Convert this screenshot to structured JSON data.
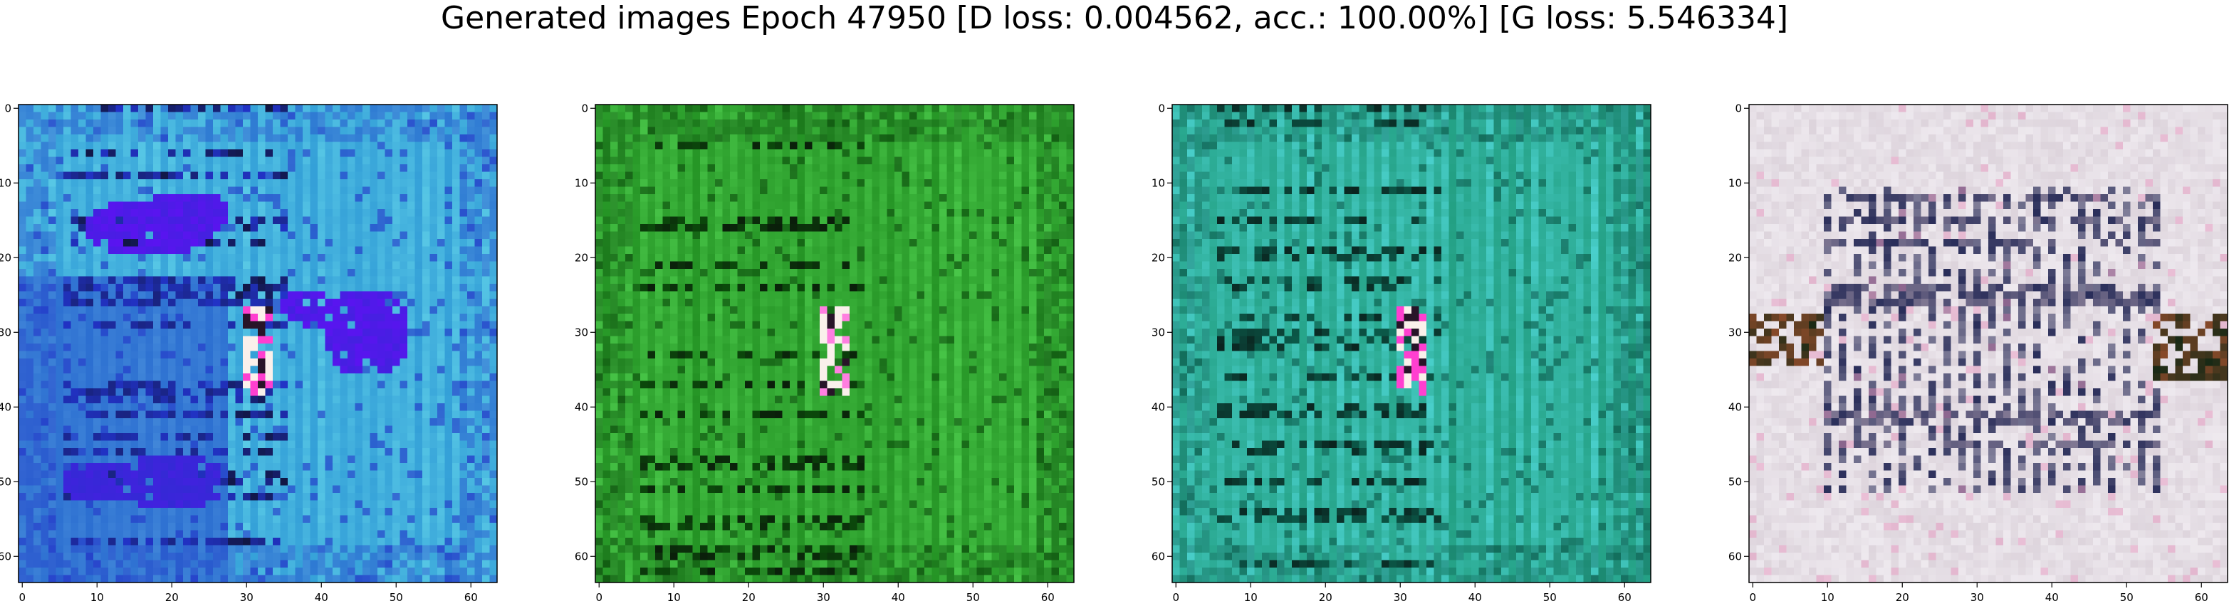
{
  "figure": {
    "title": "Generated images Epoch 47950 [D loss: 0.004562, acc.: 100.00%] [G loss: 5.546334]"
  },
  "panels": [
    {
      "id": "sample-1",
      "palette": {
        "base": "#2f9ad6",
        "light": "#5fd0e8",
        "dark": "#2233c8",
        "accent": "#5a14f0",
        "spot": "#ff3fd0"
      },
      "x_ticks": [
        "0",
        "10",
        "20",
        "30",
        "40",
        "50",
        "60"
      ],
      "y_ticks": [
        "0",
        "10",
        "20",
        "30",
        "40",
        "50",
        "60"
      ]
    },
    {
      "id": "sample-2",
      "palette": {
        "base": "#1e8a1e",
        "light": "#4fcf4f",
        "dark": "#0b4a0b",
        "accent": "#2aa82a",
        "spot": "#ff7fe0"
      },
      "x_ticks": [
        "0",
        "10",
        "20",
        "30",
        "40",
        "50",
        "60"
      ],
      "y_ticks": [
        "0",
        "10",
        "20",
        "30",
        "40",
        "50",
        "60"
      ]
    },
    {
      "id": "sample-3",
      "palette": {
        "base": "#1e9a7a",
        "light": "#4fd6d6",
        "dark": "#0b5a4a",
        "accent": "#2db3a0",
        "spot": "#ff3fd0"
      },
      "x_ticks": [
        "0",
        "10",
        "20",
        "30",
        "40",
        "50",
        "60"
      ],
      "y_ticks": [
        "0",
        "10",
        "20",
        "30",
        "40",
        "50",
        "60"
      ]
    },
    {
      "id": "sample-4",
      "palette": {
        "base": "#ddd4dc",
        "light": "#f2eef3",
        "dark": "#2a2e5a",
        "accent": "#b9a8b8",
        "spot": "#8a4a2a"
      },
      "x_ticks": [
        "0",
        "10",
        "20",
        "30",
        "40",
        "50",
        "60"
      ],
      "y_ticks": [
        "0",
        "10",
        "20",
        "30",
        "40",
        "50",
        "60"
      ]
    }
  ]
}
